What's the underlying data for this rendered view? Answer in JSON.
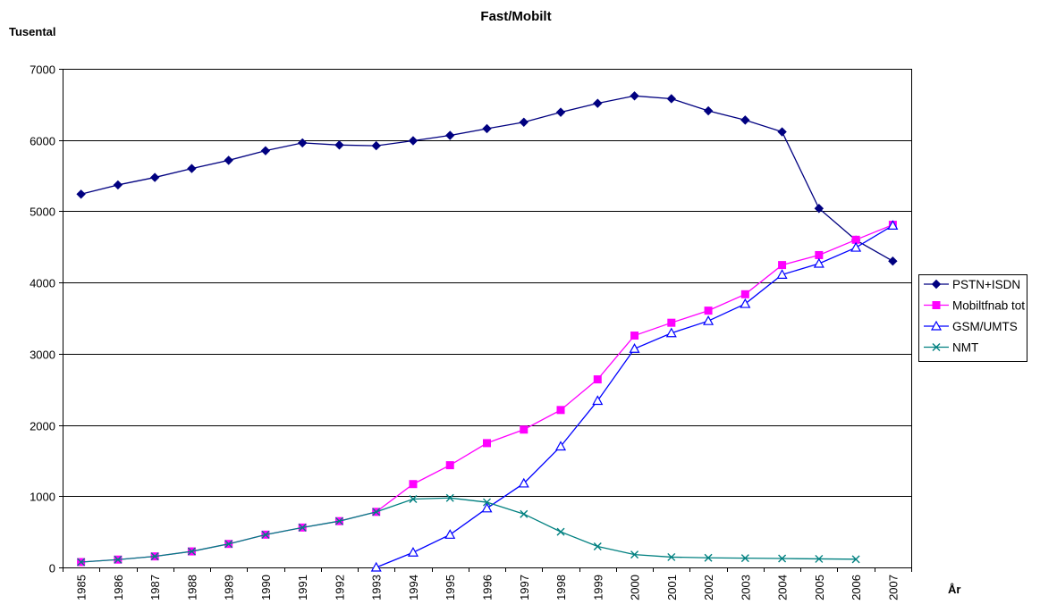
{
  "chart_data": {
    "type": "line",
    "title": "Fast/Mobilt",
    "ylabel": "Tusental",
    "xlabel": "År",
    "ylim": [
      0,
      7000
    ],
    "yticks": [
      0,
      1000,
      2000,
      3000,
      4000,
      5000,
      6000,
      7000
    ],
    "grid": "horizontal",
    "legend_position": "right",
    "categories": [
      "1985",
      "1986",
      "1987",
      "1988",
      "1989",
      "1990",
      "1991",
      "1992",
      "1993",
      "1994",
      "1995",
      "1996",
      "1997",
      "1998",
      "1999",
      "2000",
      "2001",
      "2002",
      "2003",
      "2004",
      "2005",
      "2006",
      "2007"
    ],
    "series": [
      {
        "name": "PSTN+ISDN",
        "color": "#000080",
        "marker": "diamond",
        "values": [
          5240,
          5370,
          5475,
          5600,
          5715,
          5850,
          5960,
          5930,
          5920,
          5990,
          6065,
          6160,
          6250,
          6390,
          6515,
          6620,
          6580,
          6410,
          6280,
          6115,
          5040,
          4595,
          4300
        ]
      },
      {
        "name": "Mobiltfnab tot",
        "color": "#ff00ff",
        "marker": "square",
        "values": [
          75,
          110,
          155,
          225,
          330,
          460,
          560,
          650,
          780,
          1170,
          1435,
          1745,
          1935,
          2210,
          2640,
          3255,
          3435,
          3605,
          3835,
          4245,
          4385,
          4600,
          4810
        ]
      },
      {
        "name": "GSM/UMTS",
        "color": "#0000ff",
        "marker": "triangle",
        "values": [
          null,
          null,
          null,
          null,
          null,
          null,
          null,
          null,
          0,
          210,
          460,
          830,
          1180,
          1700,
          2340,
          3070,
          3290,
          3460,
          3700,
          4110,
          4265,
          4490,
          4800
        ]
      },
      {
        "name": "NMT",
        "color": "#008080",
        "marker": "x",
        "values": [
          75,
          110,
          155,
          225,
          330,
          460,
          560,
          650,
          780,
          960,
          975,
          915,
          750,
          500,
          295,
          180,
          145,
          135,
          130,
          125,
          120,
          115,
          null
        ]
      }
    ]
  }
}
